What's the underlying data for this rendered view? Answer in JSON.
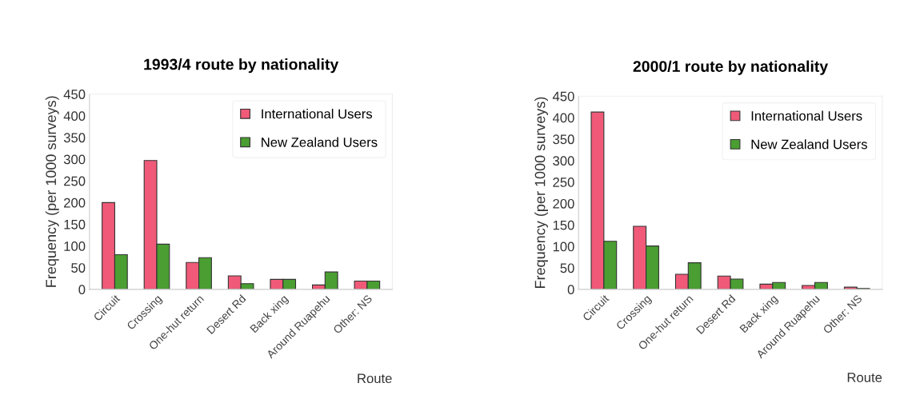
{
  "chart_data": [
    {
      "type": "bar",
      "title": "1993/4 route by nationality",
      "xlabel": "Route",
      "ylabel": "Frequency (per 1000 surveys)",
      "categories": [
        "Circuit",
        "Crossing",
        "One-hut return",
        "Desert Rd",
        "Back xing",
        "Around Ruapehu",
        "Other: NS"
      ],
      "series": [
        {
          "name": "International Users",
          "color": "#f05a78",
          "values": [
            200,
            297,
            62,
            31,
            23,
            10,
            19
          ]
        },
        {
          "name": "New Zealand Users",
          "color": "#4a9e32",
          "values": [
            80,
            104,
            73,
            13,
            23,
            40,
            19
          ]
        }
      ],
      "ylim": [
        0,
        450
      ],
      "yticks": [
        0,
        50,
        100,
        150,
        200,
        250,
        300,
        350,
        400,
        450
      ],
      "grid": false,
      "legend": "top right"
    },
    {
      "type": "bar",
      "title": "2000/1 route by nationality",
      "xlabel": "Route",
      "ylabel": "Frequency (per 1000 surveys)",
      "categories": [
        "Circuit",
        "Crossing",
        "One-hut return",
        "Desert Rd",
        "Back xing",
        "Around Ruapehu",
        "Other: NS"
      ],
      "series": [
        {
          "name": "International Users",
          "color": "#f05a78",
          "values": [
            413,
            147,
            35,
            31,
            12,
            9,
            5
          ]
        },
        {
          "name": "New Zealand Users",
          "color": "#4a9e32",
          "values": [
            112,
            101,
            62,
            24,
            16,
            16,
            2
          ]
        }
      ],
      "ylim": [
        0,
        450
      ],
      "yticks": [
        0,
        50,
        100,
        150,
        200,
        250,
        300,
        350,
        400,
        450
      ],
      "grid": false,
      "legend": "top right"
    }
  ]
}
